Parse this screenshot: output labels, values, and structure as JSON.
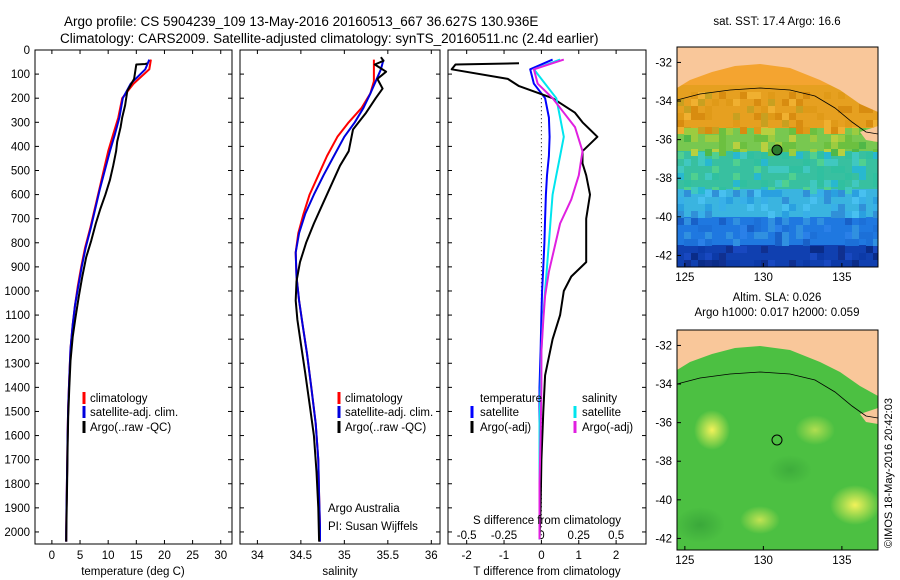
{
  "header": {
    "line1": "Argo profile: CS 5904239_109 13-May-2016 20160513_667 36.627S 130.936E",
    "line2": "Climatology: CARS2009. Satellite-adjusted climatology: synTS_20160511.nc (2.4d earlier)"
  },
  "colors": {
    "climatology": "#ff0000",
    "satellite": "#0000dd",
    "argo": "#000000",
    "sat_t": "#0000ff",
    "sat_s": "#00e5ee",
    "argo_s": "#e020e0"
  },
  "legend": {
    "climatology": "climatology",
    "satellite": "satellite-adj. clim.",
    "argo": "Argo(..raw -QC)"
  },
  "legend_diff": {
    "temperature": "temperature",
    "salinity": "salinity",
    "satellite": "satellite",
    "argo": "Argo(-adj)"
  },
  "annotation": {
    "line1": "Argo Australia",
    "line2": "PI: Susan Wijffels"
  },
  "stamp": "©IMOS 18-May-2016 20:42:03",
  "chart_data": [
    {
      "type": "line",
      "xlabel": "temperature (deg C)",
      "ylabel": "",
      "xlim": [
        -3,
        32
      ],
      "ylim": [
        2050,
        0
      ],
      "xticks": [
        0,
        5,
        10,
        15,
        20,
        25,
        30
      ],
      "yticks": [
        0,
        100,
        200,
        300,
        400,
        500,
        600,
        700,
        800,
        900,
        1000,
        1100,
        1200,
        1300,
        1400,
        1500,
        1600,
        1700,
        1800,
        1900,
        2000
      ],
      "series": [
        {
          "name": "climatology",
          "x": [
            17.6,
            17.3,
            14.5,
            12.5,
            11.8,
            10.9,
            10.0,
            9.2,
            8.4,
            7.6,
            6.8,
            5.9,
            5.2,
            4.6,
            4.1,
            3.7,
            3.3,
            3.1,
            2.9,
            2.8,
            2.7,
            2.6,
            2.55,
            2.55
          ],
          "y": [
            40,
            80,
            140,
            200,
            280,
            350,
            420,
            500,
            580,
            660,
            740,
            820,
            900,
            980,
            1060,
            1140,
            1240,
            1360,
            1480,
            1600,
            1750,
            1900,
            2000,
            2040
          ]
        },
        {
          "name": "satellite-adj. clim.",
          "x": [
            17.3,
            16.6,
            14.0,
            12.6,
            12.0,
            11.2,
            10.3,
            9.4,
            8.5,
            7.7,
            6.9,
            6.0,
            5.3,
            4.7,
            4.1,
            3.7,
            3.3,
            3.1,
            2.9,
            2.8,
            2.7,
            2.6,
            2.55,
            2.55
          ],
          "y": [
            40,
            80,
            140,
            200,
            280,
            350,
            420,
            500,
            580,
            660,
            740,
            820,
            900,
            980,
            1060,
            1140,
            1240,
            1360,
            1480,
            1600,
            1750,
            1900,
            2000,
            2040
          ]
        },
        {
          "name": "Argo(..raw -QC)",
          "x": [
            16.9,
            16.6,
            15.0,
            14.6,
            13.4,
            13.0,
            12.5,
            12.2,
            11.6,
            11.4,
            10.9,
            10.3,
            9.5,
            8.6,
            7.8,
            7.0,
            6.1,
            5.4,
            4.8,
            4.2,
            3.7,
            3.3,
            3.1,
            2.9,
            2.8,
            2.7,
            2.6,
            2.55
          ],
          "y": [
            55,
            58,
            60,
            120,
            170,
            230,
            280,
            320,
            380,
            420,
            480,
            540,
            600,
            660,
            720,
            790,
            860,
            940,
            1020,
            1110,
            1190,
            1290,
            1400,
            1520,
            1650,
            1800,
            1950,
            2040
          ]
        }
      ]
    },
    {
      "type": "line",
      "xlabel": "salinity",
      "ylabel": "",
      "xlim": [
        33.8,
        36.1
      ],
      "ylim": [
        2050,
        0
      ],
      "xticks": [
        34,
        34.5,
        35,
        35.5,
        36
      ],
      "series": [
        {
          "name": "climatology",
          "x": [
            35.34,
            35.34,
            35.34,
            35.3,
            35.2,
            35.05,
            34.92,
            34.8,
            34.7,
            34.6,
            34.53,
            34.47,
            34.44,
            34.45,
            34.48,
            34.52,
            34.57,
            34.62,
            34.67,
            34.7,
            34.71,
            34.72,
            34.72
          ],
          "y": [
            40,
            80,
            130,
            180,
            240,
            300,
            360,
            440,
            520,
            600,
            680,
            760,
            840,
            940,
            1040,
            1140,
            1260,
            1400,
            1550,
            1700,
            1850,
            1980,
            2040
          ]
        },
        {
          "name": "satellite-adj. clim.",
          "x": [
            35.45,
            35.42,
            35.36,
            35.3,
            35.22,
            35.12,
            35.0,
            34.88,
            34.76,
            34.65,
            34.55,
            34.48,
            34.44,
            34.45,
            34.48,
            34.52,
            34.57,
            34.62,
            34.67,
            34.7,
            34.71,
            34.72,
            34.72
          ],
          "y": [
            40,
            80,
            130,
            180,
            240,
            300,
            360,
            440,
            520,
            600,
            680,
            760,
            840,
            940,
            1040,
            1140,
            1260,
            1400,
            1550,
            1700,
            1850,
            1980,
            2040
          ]
        },
        {
          "name": "Argo(..raw -QC)",
          "x": [
            35.42,
            35.45,
            35.35,
            35.48,
            35.38,
            35.44,
            35.36,
            35.25,
            35.1,
            35.05,
            34.95,
            34.85,
            34.75,
            34.65,
            34.56,
            34.49,
            34.45,
            34.44,
            34.46,
            34.5,
            34.55,
            34.6,
            34.65,
            34.68,
            34.7,
            34.71
          ],
          "y": [
            30,
            45,
            60,
            90,
            120,
            160,
            200,
            260,
            330,
            420,
            480,
            560,
            640,
            720,
            800,
            880,
            960,
            1040,
            1120,
            1220,
            1340,
            1470,
            1600,
            1750,
            1900,
            2040
          ]
        }
      ]
    },
    {
      "type": "line",
      "xlabel": "T difference from climatology",
      "x2label": "S difference from climatology",
      "ylabel": "",
      "xlim": [
        -2.5,
        2.8
      ],
      "ylim": [
        2050,
        0
      ],
      "xticks": [
        -2,
        -1,
        0,
        1,
        2
      ],
      "x2ticks": [
        "-0.5",
        "-0.25",
        "0",
        "0.25",
        "0.5"
      ],
      "x2tick_positions": [
        -2,
        -1,
        0,
        1,
        2
      ],
      "series": [
        {
          "name": "satellite (temperature)",
          "x": [
            0.3,
            -0.3,
            -0.2,
            0.1,
            0.2,
            0.22,
            0.2,
            0.15,
            0.12,
            0.1,
            0.08,
            0.05,
            0.02,
            0.0,
            -0.02,
            -0.05,
            -0.05,
            -0.05,
            -0.05,
            -0.05
          ],
          "y": [
            40,
            80,
            140,
            200,
            280,
            360,
            440,
            520,
            600,
            700,
            800,
            900,
            1000,
            1100,
            1250,
            1400,
            1550,
            1700,
            1850,
            2030
          ]
        },
        {
          "name": "Argo(-adj) (temperature)",
          "x": [
            -0.6,
            -2.3,
            -2.4,
            -0.9,
            -0.6,
            0.3,
            0.9,
            1.1,
            1.5,
            1.1,
            1.1,
            1.2,
            1.3,
            1.2,
            1.2,
            1.2,
            0.8,
            0.6,
            0.5,
            0.3,
            0.1,
            0.05,
            0.0,
            -0.02,
            -0.05
          ],
          "y": [
            55,
            60,
            80,
            120,
            150,
            200,
            260,
            300,
            360,
            420,
            470,
            520,
            600,
            700,
            800,
            880,
            940,
            1000,
            1100,
            1200,
            1350,
            1500,
            1700,
            1900,
            2030
          ]
        },
        {
          "name": "satellite (salinity)",
          "x": [
            0.5,
            -0.2,
            0.1,
            0.4,
            0.5,
            0.6,
            0.5,
            0.4,
            0.3,
            0.25,
            0.2,
            0.15,
            0.1,
            0.05,
            0.0,
            -0.02,
            -0.05,
            -0.05,
            -0.05,
            -0.05
          ],
          "y": [
            40,
            80,
            140,
            200,
            280,
            360,
            440,
            520,
            600,
            700,
            800,
            900,
            1000,
            1100,
            1250,
            1400,
            1550,
            1700,
            1850,
            2030
          ]
        },
        {
          "name": "Argo(-adj) (salinity)",
          "x": [
            0.6,
            -0.2,
            -0.1,
            0.3,
            0.6,
            0.9,
            1.1,
            1.0,
            0.8,
            0.5,
            0.35,
            0.2,
            0.1,
            0.05,
            0.0,
            0.0,
            -0.02,
            -0.05,
            -0.05
          ],
          "y": [
            40,
            80,
            140,
            200,
            260,
            320,
            420,
            520,
            620,
            720,
            820,
            920,
            1020,
            1120,
            1250,
            1400,
            1600,
            1800,
            2030
          ]
        }
      ]
    },
    {
      "type": "heatmap",
      "title": "sat. SST: 17.4 Argo: 16.6",
      "xlim": [
        124.5,
        137.3
      ],
      "ylim": [
        -42.6,
        -31.2
      ],
      "xticks": [
        125,
        130,
        135
      ],
      "yticks": [
        -32,
        -34,
        -36,
        -38,
        -40,
        -42
      ],
      "argo_marker": {
        "lon": 130.936,
        "lat": -36.627
      }
    },
    {
      "type": "heatmap",
      "title": "Altim. SLA: 0.026",
      "subtitle": "Argo h1000: 0.017 h2000: 0.059",
      "xlim": [
        124.5,
        137.3
      ],
      "ylim": [
        -42.6,
        -31.2
      ],
      "xticks": [
        125,
        130,
        135
      ],
      "yticks": [
        -32,
        -34,
        -36,
        -38,
        -40,
        -42
      ],
      "argo_marker": {
        "lon": 130.936,
        "lat": -36.627
      }
    }
  ]
}
